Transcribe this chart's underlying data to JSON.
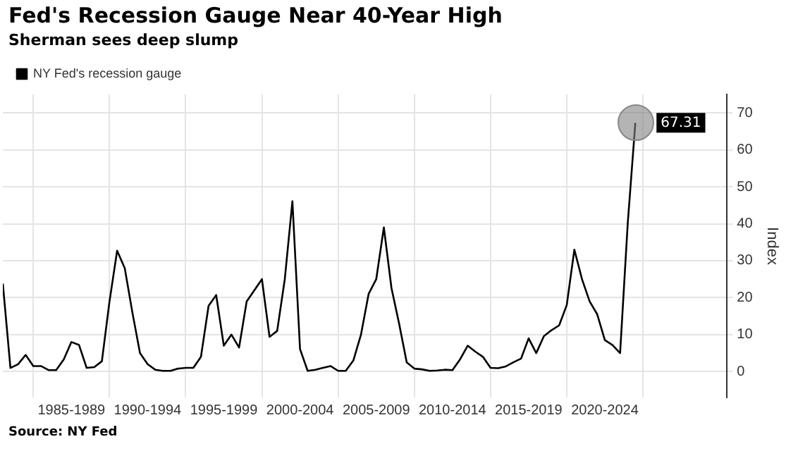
{
  "chart_data": {
    "type": "line",
    "title": "Fed's Recession Gauge Near 40-Year High",
    "subtitle": "Sherman sees deep slump",
    "ylabel": "Index",
    "annotations": [
      "Source: NY Fed",
      "67.31"
    ],
    "legend": "top left",
    "grid": true,
    "marker": "none",
    "line_style": "solid",
    "categories": [
      null,
      null,
      null,
      null,
      null,
      null,
      null,
      null,
      null,
      "1985-1989",
      null,
      null,
      null,
      null,
      null,
      null,
      null,
      null,
      null,
      "1990-1994",
      null,
      null,
      null,
      null,
      null,
      null,
      null,
      null,
      null,
      "1995-1999",
      null,
      null,
      null,
      null,
      null,
      null,
      null,
      null,
      null,
      "2000-2004",
      null,
      null,
      null,
      null,
      null,
      null,
      null,
      null,
      null,
      "2005-2009",
      null,
      null,
      null,
      null,
      null,
      null,
      null,
      null,
      null,
      "2010-2014",
      null,
      null,
      null,
      null,
      null,
      null,
      null,
      null,
      null,
      "2015-2019",
      null,
      null,
      null,
      null,
      null,
      null,
      null,
      null,
      null,
      "2020-2024",
      null,
      null,
      null,
      null
    ],
    "ylim": [
      -7,
      75
    ],
    "yticks": [
      0,
      10,
      20,
      30,
      40,
      50,
      60,
      70
    ],
    "series": [
      {
        "name": "NY Fed's recession gauge",
        "color": "#000000",
        "values": [
          23.8,
          1,
          2,
          4.5,
          1.5,
          1.5,
          0.4,
          0.4,
          3.3,
          8,
          7.2,
          1,
          1.2,
          2.8,
          19,
          32.7,
          28,
          16,
          5,
          2,
          0.5,
          0.2,
          0.2,
          0.8,
          1,
          1,
          4,
          17.8,
          20.7,
          7,
          10,
          6.5,
          19,
          22,
          25,
          9.4,
          11,
          25,
          46.1,
          6.1,
          0.2,
          0.5,
          1,
          1.5,
          0.2,
          0.2,
          3,
          10,
          21,
          25,
          39,
          22.6,
          13,
          2.5,
          0.8,
          0.6,
          0.2,
          0.3,
          0.5,
          0.4,
          3.3,
          7,
          5.4,
          4,
          1,
          0.9,
          1.4,
          2.5,
          3.5,
          9,
          5,
          9.6,
          11.2,
          12.5,
          18,
          33,
          25,
          19,
          15.5,
          8.5,
          7.2,
          5,
          40,
          67.31
        ]
      }
    ]
  }
}
